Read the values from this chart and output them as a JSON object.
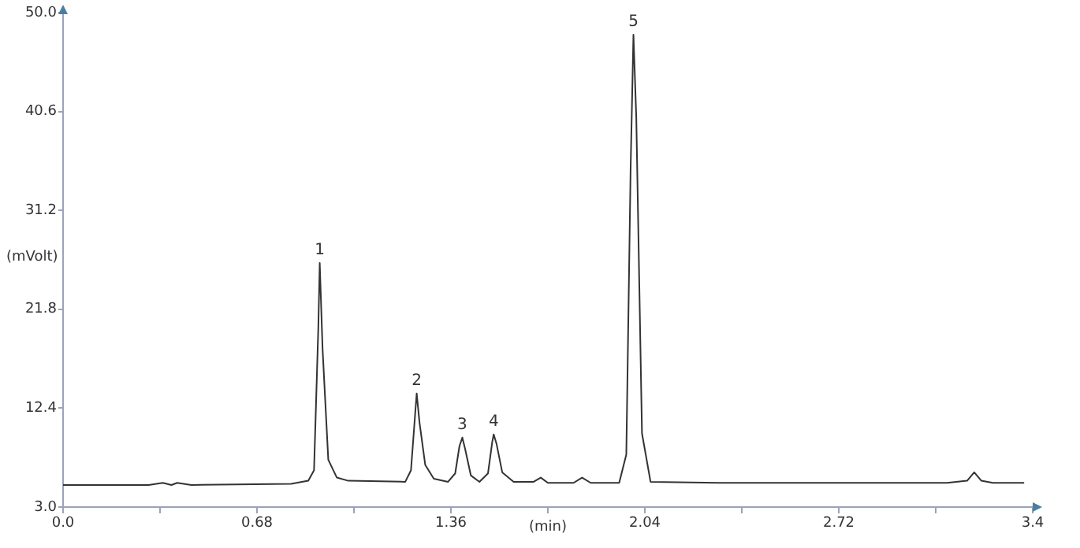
{
  "chart_data": {
    "type": "line",
    "xlabel": "(min)",
    "ylabel": "(mVolt)",
    "x": [
      0,
      0.3,
      0.35,
      0.38,
      0.4,
      0.45,
      0.8,
      0.86,
      0.88,
      0.895,
      0.9,
      0.91,
      0.93,
      0.96,
      1.0,
      1.2,
      1.22,
      1.235,
      1.24,
      1.25,
      1.27,
      1.3,
      1.35,
      1.375,
      1.39,
      1.4,
      1.41,
      1.43,
      1.46,
      1.49,
      1.505,
      1.51,
      1.52,
      1.54,
      1.58,
      1.65,
      1.675,
      1.7,
      1.79,
      1.82,
      1.85,
      1.95,
      1.975,
      1.99,
      2.0,
      2.01,
      2.03,
      2.06,
      2.3,
      2.6,
      3.1,
      3.17,
      3.195,
      3.22,
      3.26,
      3.33,
      3.37
    ],
    "series": [
      {
        "color": "#333333",
        "values": [
          5.1,
          5.1,
          5.3,
          5.1,
          5.3,
          5.1,
          5.2,
          5.5,
          6.5,
          20,
          26.2,
          18,
          7.5,
          5.8,
          5.5,
          5.4,
          6.5,
          12,
          13.8,
          11,
          7,
          5.7,
          5.4,
          6.2,
          8.8,
          9.6,
          8.5,
          6,
          5.4,
          6.2,
          9.2,
          9.9,
          9.0,
          6.3,
          5.4,
          5.4,
          5.8,
          5.3,
          5.3,
          5.8,
          5.3,
          5.3,
          8,
          35,
          47.9,
          40,
          10,
          5.4,
          5.3,
          5.3,
          5.3,
          5.5,
          6.3,
          5.5,
          5.3,
          5.3,
          5.3
        ]
      }
    ],
    "xlim": [
      0,
      3.4
    ],
    "ylim": [
      3,
      50
    ],
    "xticks": [
      {
        "value": 0,
        "label": "0.0"
      },
      {
        "value": 0.34,
        "label": null
      },
      0.68,
      {
        "value": 1.02,
        "label": null
      },
      1.36,
      {
        "value": 1.7,
        "label": null
      },
      2.04,
      {
        "value": 2.38,
        "label": null
      },
      2.72,
      {
        "value": 3.06,
        "label": null
      },
      3.4
    ],
    "yticks": [
      {
        "value": 3,
        "label": "3.0"
      },
      12.4,
      21.8,
      31.2,
      40.6,
      {
        "value": 50,
        "label": "50.0"
      }
    ],
    "annotations": [
      {
        "text": "1",
        "x": 0.9,
        "y": 26.2
      },
      {
        "text": "2",
        "x": 1.24,
        "y": 13.8
      },
      {
        "text": "3",
        "x": 1.4,
        "y": 9.6
      },
      {
        "text": "4",
        "x": 1.51,
        "y": 9.9
      },
      {
        "text": "5",
        "x": 2.0,
        "y": 47.9
      }
    ],
    "grid": false,
    "legend": false,
    "marker": "none",
    "line_style": "solid"
  }
}
